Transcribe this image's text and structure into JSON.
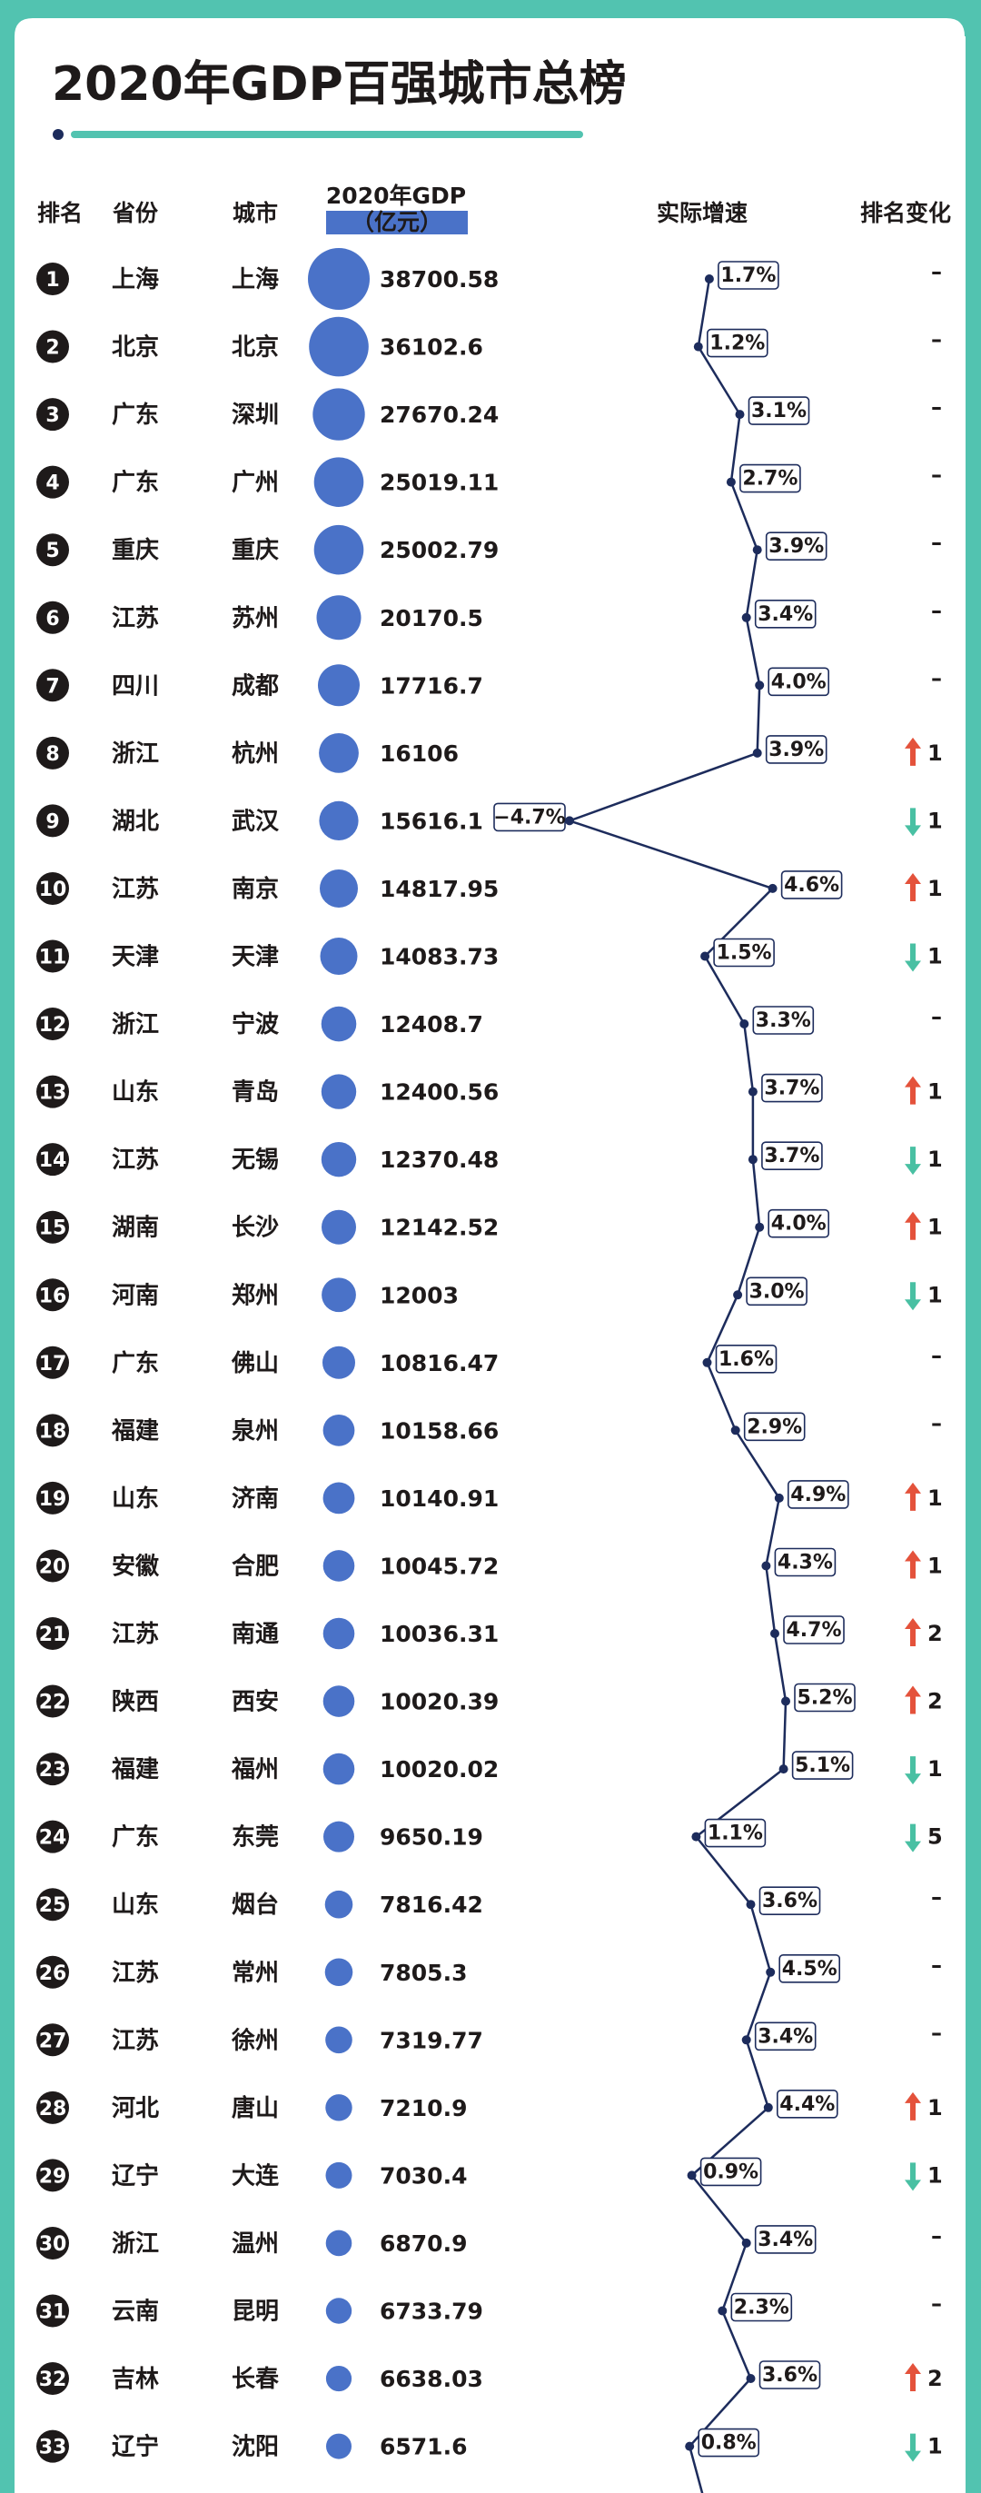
{
  "title": "2020年GDP百强城市总榜",
  "headers": {
    "rank": "排名",
    "province": "省份",
    "city": "城市",
    "gdp_line1": "2020年GDP",
    "gdp_line2": "（亿元）",
    "growth": "实际增速",
    "change": "排名变化"
  },
  "colors": {
    "frame": "#52c3b0",
    "bubble": "#4a72c8",
    "rank_badge": "#1e1a1a",
    "line": "#1d2c5c",
    "up": "#e4523b",
    "down": "#49c0a3",
    "title_bar": "#52c3b0"
  },
  "chart_data": {
    "type": "table",
    "growth_axis_range": [
      -4.7,
      5.2
    ],
    "rows": [
      {
        "rank": "1",
        "province": "上海",
        "city": "上海",
        "gdp": 38700.58,
        "gdp_text": "38700.58",
        "growth": 1.7,
        "growth_text": "1.7%",
        "change": "none",
        "change_text": "–"
      },
      {
        "rank": "2",
        "province": "北京",
        "city": "北京",
        "gdp": 36102.6,
        "gdp_text": "36102.6",
        "growth": 1.2,
        "growth_text": "1.2%",
        "change": "none",
        "change_text": "–"
      },
      {
        "rank": "3",
        "province": "广东",
        "city": "深圳",
        "gdp": 27670.24,
        "gdp_text": "27670.24",
        "growth": 3.1,
        "growth_text": "3.1%",
        "change": "none",
        "change_text": "–"
      },
      {
        "rank": "4",
        "province": "广东",
        "city": "广州",
        "gdp": 25019.11,
        "gdp_text": "25019.11",
        "growth": 2.7,
        "growth_text": "2.7%",
        "change": "none",
        "change_text": "–"
      },
      {
        "rank": "5",
        "province": "重庆",
        "city": "重庆",
        "gdp": 25002.79,
        "gdp_text": "25002.79",
        "growth": 3.9,
        "growth_text": "3.9%",
        "change": "none",
        "change_text": "–"
      },
      {
        "rank": "6",
        "province": "江苏",
        "city": "苏州",
        "gdp": 20170.5,
        "gdp_text": "20170.5",
        "growth": 3.4,
        "growth_text": "3.4%",
        "change": "none",
        "change_text": "–"
      },
      {
        "rank": "7",
        "province": "四川",
        "city": "成都",
        "gdp": 17716.7,
        "gdp_text": "17716.7",
        "growth": 4.0,
        "growth_text": "4.0%",
        "change": "none",
        "change_text": "–"
      },
      {
        "rank": "8",
        "province": "浙江",
        "city": "杭州",
        "gdp": 16106,
        "gdp_text": "16106",
        "growth": 3.9,
        "growth_text": "3.9%",
        "change": "up",
        "change_text": "1"
      },
      {
        "rank": "9",
        "province": "湖北",
        "city": "武汉",
        "gdp": 15616.1,
        "gdp_text": "15616.1",
        "growth": -4.7,
        "growth_text": "−4.7%",
        "change": "down",
        "change_text": "1"
      },
      {
        "rank": "10",
        "province": "江苏",
        "city": "南京",
        "gdp": 14817.95,
        "gdp_text": "14817.95",
        "growth": 4.6,
        "growth_text": "4.6%",
        "change": "up",
        "change_text": "1"
      },
      {
        "rank": "11",
        "province": "天津",
        "city": "天津",
        "gdp": 14083.73,
        "gdp_text": "14083.73",
        "growth": 1.5,
        "growth_text": "1.5%",
        "change": "down",
        "change_text": "1"
      },
      {
        "rank": "12",
        "province": "浙江",
        "city": "宁波",
        "gdp": 12408.7,
        "gdp_text": "12408.7",
        "growth": 3.3,
        "growth_text": "3.3%",
        "change": "none",
        "change_text": "–"
      },
      {
        "rank": "13",
        "province": "山东",
        "city": "青岛",
        "gdp": 12400.56,
        "gdp_text": "12400.56",
        "growth": 3.7,
        "growth_text": "3.7%",
        "change": "up",
        "change_text": "1"
      },
      {
        "rank": "14",
        "province": "江苏",
        "city": "无锡",
        "gdp": 12370.48,
        "gdp_text": "12370.48",
        "growth": 3.7,
        "growth_text": "3.7%",
        "change": "down",
        "change_text": "1"
      },
      {
        "rank": "15",
        "province": "湖南",
        "city": "长沙",
        "gdp": 12142.52,
        "gdp_text": "12142.52",
        "growth": 4.0,
        "growth_text": "4.0%",
        "change": "up",
        "change_text": "1"
      },
      {
        "rank": "16",
        "province": "河南",
        "city": "郑州",
        "gdp": 12003,
        "gdp_text": "12003",
        "growth": 3.0,
        "growth_text": "3.0%",
        "change": "down",
        "change_text": "1"
      },
      {
        "rank": "17",
        "province": "广东",
        "city": "佛山",
        "gdp": 10816.47,
        "gdp_text": "10816.47",
        "growth": 1.6,
        "growth_text": "1.6%",
        "change": "none",
        "change_text": "–"
      },
      {
        "rank": "18",
        "province": "福建",
        "city": "泉州",
        "gdp": 10158.66,
        "gdp_text": "10158.66",
        "growth": 2.9,
        "growth_text": "2.9%",
        "change": "none",
        "change_text": "–"
      },
      {
        "rank": "19",
        "province": "山东",
        "city": "济南",
        "gdp": 10140.91,
        "gdp_text": "10140.91",
        "growth": 4.9,
        "growth_text": "4.9%",
        "change": "up",
        "change_text": "1"
      },
      {
        "rank": "20",
        "province": "安徽",
        "city": "合肥",
        "gdp": 10045.72,
        "gdp_text": "10045.72",
        "growth": 4.3,
        "growth_text": "4.3%",
        "change": "up",
        "change_text": "1"
      },
      {
        "rank": "21",
        "province": "江苏",
        "city": "南通",
        "gdp": 10036.31,
        "gdp_text": "10036.31",
        "growth": 4.7,
        "growth_text": "4.7%",
        "change": "up",
        "change_text": "2"
      },
      {
        "rank": "22",
        "province": "陕西",
        "city": "西安",
        "gdp": 10020.39,
        "gdp_text": "10020.39",
        "growth": 5.2,
        "growth_text": "5.2%",
        "change": "up",
        "change_text": "2"
      },
      {
        "rank": "23",
        "province": "福建",
        "city": "福州",
        "gdp": 10020.02,
        "gdp_text": "10020.02",
        "growth": 5.1,
        "growth_text": "5.1%",
        "change": "down",
        "change_text": "1"
      },
      {
        "rank": "24",
        "province": "广东",
        "city": "东莞",
        "gdp": 9650.19,
        "gdp_text": "9650.19",
        "growth": 1.1,
        "growth_text": "1.1%",
        "change": "down",
        "change_text": "5"
      },
      {
        "rank": "25",
        "province": "山东",
        "city": "烟台",
        "gdp": 7816.42,
        "gdp_text": "7816.42",
        "growth": 3.6,
        "growth_text": "3.6%",
        "change": "none",
        "change_text": "–"
      },
      {
        "rank": "26",
        "province": "江苏",
        "city": "常州",
        "gdp": 7805.3,
        "gdp_text": "7805.3",
        "growth": 4.5,
        "growth_text": "4.5%",
        "change": "none",
        "change_text": "–"
      },
      {
        "rank": "27",
        "province": "江苏",
        "city": "徐州",
        "gdp": 7319.77,
        "gdp_text": "7319.77",
        "growth": 3.4,
        "growth_text": "3.4%",
        "change": "none",
        "change_text": "–"
      },
      {
        "rank": "28",
        "province": "河北",
        "city": "唐山",
        "gdp": 7210.9,
        "gdp_text": "7210.9",
        "growth": 4.4,
        "growth_text": "4.4%",
        "change": "up",
        "change_text": "1"
      },
      {
        "rank": "29",
        "province": "辽宁",
        "city": "大连",
        "gdp": 7030.4,
        "gdp_text": "7030.4",
        "growth": 0.9,
        "growth_text": "0.9%",
        "change": "down",
        "change_text": "1"
      },
      {
        "rank": "30",
        "province": "浙江",
        "city": "温州",
        "gdp": 6870.9,
        "gdp_text": "6870.9",
        "growth": 3.4,
        "growth_text": "3.4%",
        "change": "none",
        "change_text": "–"
      },
      {
        "rank": "31",
        "province": "云南",
        "city": "昆明",
        "gdp": 6733.79,
        "gdp_text": "6733.79",
        "growth": 2.3,
        "growth_text": "2.3%",
        "change": "none",
        "change_text": "–"
      },
      {
        "rank": "32",
        "province": "吉林",
        "city": "长春",
        "gdp": 6638.03,
        "gdp_text": "6638.03",
        "growth": 3.6,
        "growth_text": "3.6%",
        "change": "up",
        "change_text": "2"
      },
      {
        "rank": "33",
        "province": "辽宁",
        "city": "沈阳",
        "gdp": 6571.6,
        "gdp_text": "6571.6",
        "growth": 0.8,
        "growth_text": "0.8%",
        "change": "down",
        "change_text": "1"
      }
    ]
  }
}
